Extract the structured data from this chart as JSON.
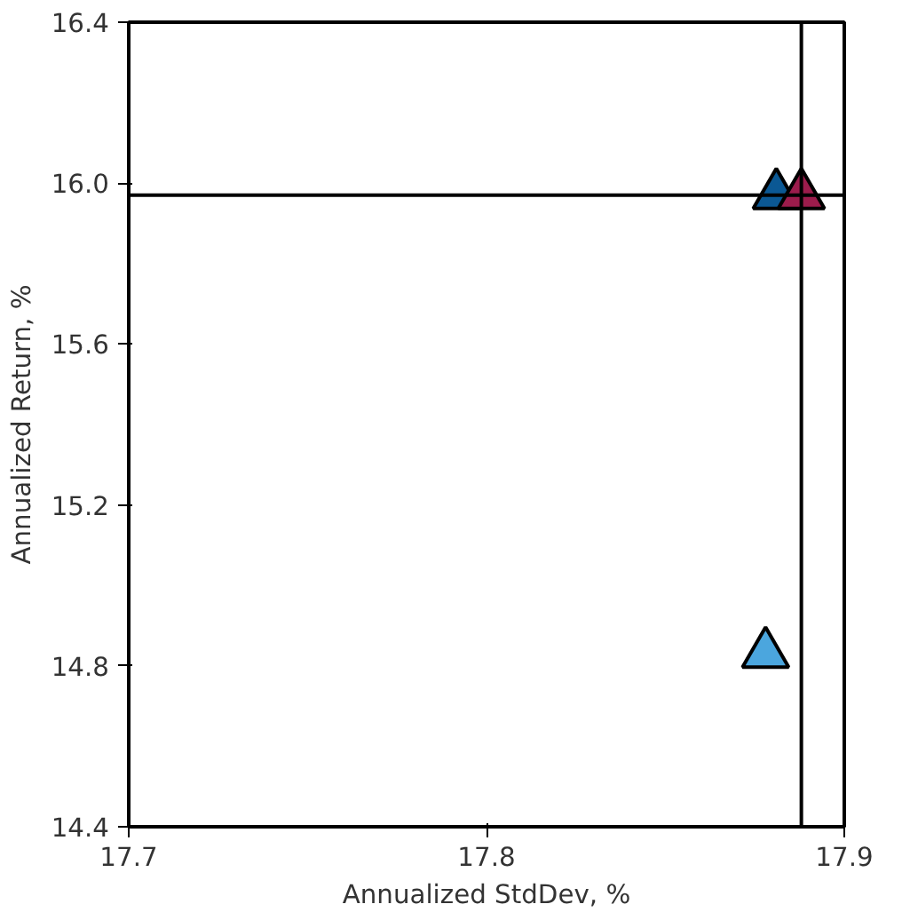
{
  "chart_data": {
    "type": "scatter",
    "xlabel": "Annualized StdDev, %",
    "ylabel": "Annualized Return, %",
    "marker": "triangle",
    "grid": false,
    "xlim": [
      17.7,
      17.9
    ],
    "xticks": [
      17.7,
      17.8,
      17.9
    ],
    "ylim": [
      14.4,
      16.4
    ],
    "yticks": [
      {
        "value": 14.4,
        "label": "14.4"
      },
      {
        "value": 14.8,
        "label": "14.8"
      },
      {
        "value": 15.2,
        "label": "15.2"
      },
      {
        "value": 15.6,
        "label": "15.6"
      },
      {
        "value": 16.0,
        "label": "16.0"
      },
      {
        "value": 16.4,
        "label": "16.4"
      }
    ],
    "series": [
      {
        "color": "#0b5894",
        "x": [
          17.881
        ],
        "values": [
          15.97
        ]
      },
      {
        "color": "#9c1c4c",
        "x": [
          17.888
        ],
        "values": [
          15.97
        ]
      },
      {
        "color": "#4ba6de",
        "x": [
          17.878
        ],
        "values": [
          14.83
        ]
      }
    ],
    "ref_lines": [
      {
        "axis": "x",
        "value": 17.888,
        "color": "#000000"
      },
      {
        "axis": "y",
        "value": 15.97,
        "color": "#000000"
      }
    ]
  }
}
